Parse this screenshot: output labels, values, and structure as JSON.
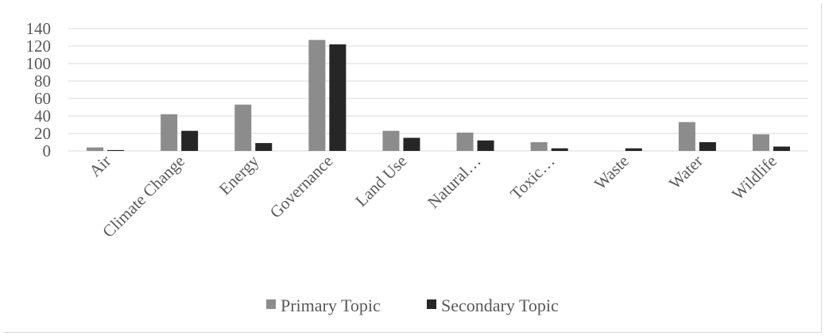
{
  "chart_data": {
    "type": "bar",
    "title": "",
    "xlabel": "",
    "ylabel": "",
    "categories": [
      "Air",
      "Climate Change",
      "Energy",
      "Governance",
      "Land Use",
      "Natural…",
      "Toxic…",
      "Waste",
      "Water",
      "Wildlife"
    ],
    "series": [
      {
        "name": "Primary Topic",
        "color": "#8c8c8c",
        "values": [
          4,
          42,
          53,
          127,
          23,
          21,
          10,
          0,
          33,
          19
        ]
      },
      {
        "name": "Secondary Topic",
        "color": "#262626",
        "values": [
          1,
          23,
          9,
          122,
          15,
          12,
          3,
          3,
          10,
          5
        ]
      }
    ],
    "ylim": [
      0,
      140
    ],
    "yticks": [
      0,
      20,
      40,
      60,
      80,
      100,
      120,
      140
    ],
    "grid": true,
    "legend": "bottom",
    "gridline_color": "#d9d9d9"
  }
}
